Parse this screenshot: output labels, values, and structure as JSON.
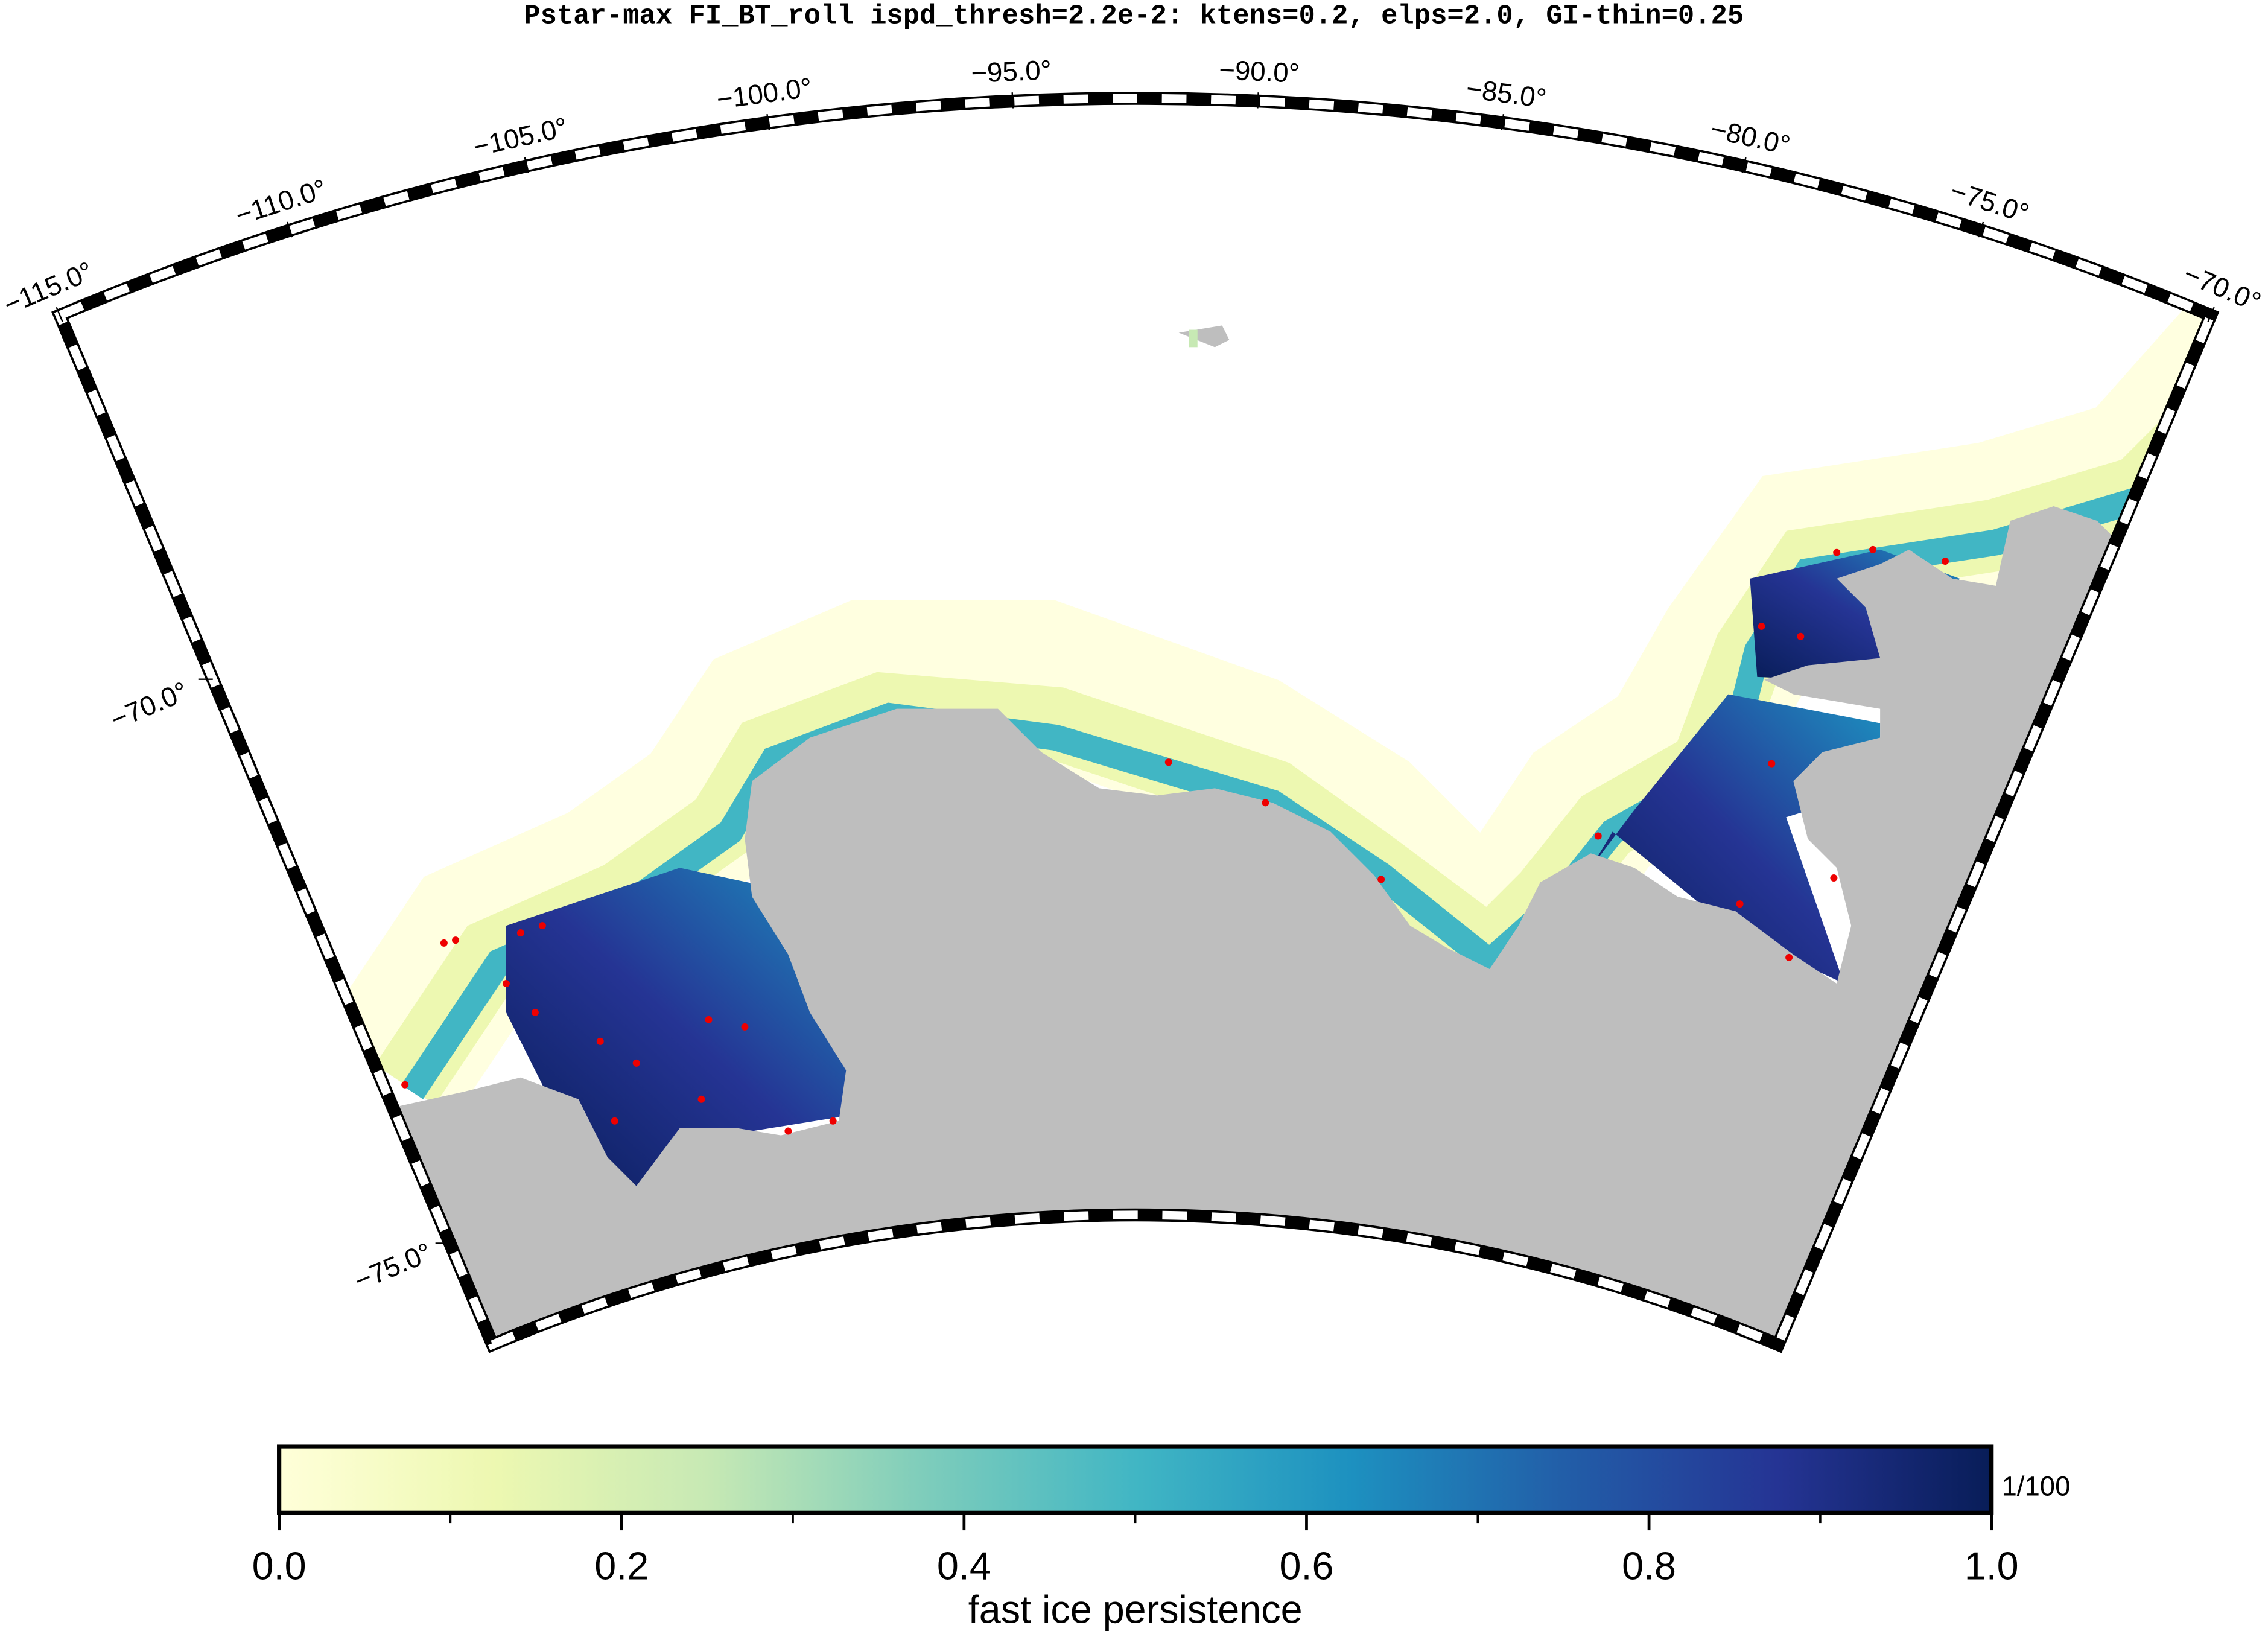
{
  "title": "Pstar-max FI_BT_roll ispd_thresh=2.2e-2: ktens=0.2, elps=2.0, GI-thin=0.25",
  "map": {
    "lon_ticks": [
      {
        "value": -115,
        "label": "−115.0°"
      },
      {
        "value": -110,
        "label": "−110.0°"
      },
      {
        "value": -105,
        "label": "−105.0°"
      },
      {
        "value": -100,
        "label": "−100.0°"
      },
      {
        "value": -95,
        "label": "−95.0°"
      },
      {
        "value": -90,
        "label": "−90.0°"
      },
      {
        "value": -85,
        "label": "−85.0°"
      },
      {
        "value": -80,
        "label": "−80.0°"
      },
      {
        "value": -75,
        "label": "−75.0°"
      },
      {
        "value": -70,
        "label": "−70.0°"
      }
    ],
    "lat_ticks": [
      {
        "value": -70,
        "label": "−70.0°"
      },
      {
        "value": -75,
        "label": "−75.0°"
      }
    ]
  },
  "colorbar": {
    "label": "fast ice persistence",
    "unit": "1/100",
    "range": [
      0,
      1
    ],
    "ticks": [
      {
        "value": 0,
        "label": "0.0"
      },
      {
        "value": 0.2,
        "label": "0.2"
      },
      {
        "value": 0.4,
        "label": "0.4"
      },
      {
        "value": 0.6,
        "label": "0.6"
      },
      {
        "value": 0.8,
        "label": "0.8"
      },
      {
        "value": 1,
        "label": "1.0"
      }
    ],
    "minor_ticks": [
      0.1,
      0.3,
      0.5,
      0.7,
      0.9
    ],
    "colors": [
      "#ffffd9",
      "#edf8b1",
      "#c7e9b4",
      "#7fcdbb",
      "#41b6c4",
      "#1d91c0",
      "#225ea8",
      "#253494",
      "#081d58"
    ]
  }
}
